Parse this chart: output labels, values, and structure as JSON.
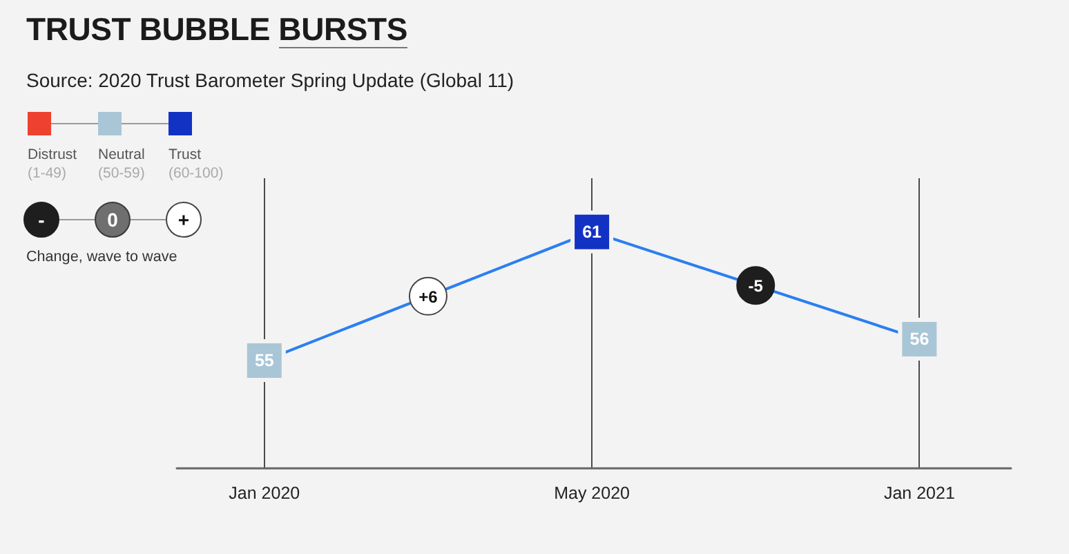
{
  "chart_data": {
    "type": "line",
    "title": "TRUST BUBBLE BURSTS",
    "subtitle": "Source: 2020 Trust Barometer Spring Update (Global 11)",
    "categories": [
      "Jan 2020",
      "May 2020",
      "Jan 2021"
    ],
    "series": [
      {
        "values": [
          55,
          61,
          56
        ],
        "color": "#2b7ff0",
        "colors": [
          "#a9c6d6",
          "#1232c4",
          "#a9c6d6"
        ]
      },
      {
        "name": "Distrust\n(1-49)",
        "color": "#ee4130",
        "values": [
          null,
          null,
          null
        ]
      },
      {
        "name": "Neutral\n(50-59)",
        "color": "#a9c6d6",
        "values": [
          null,
          null,
          null
        ]
      },
      {
        "name": "Trust\n(60-100)",
        "color": "#1232c4",
        "values": [
          null,
          null,
          null
        ]
      }
    ],
    "ylim": [
      50,
      63.5
    ],
    "data_labels": true,
    "marker": "square",
    "line_style": "solid",
    "grid": "x",
    "legend": "top left",
    "tick_labels": "x",
    "annotations": [
      {
        "text": "+6",
        "y": 58
      },
      {
        "text": "-5",
        "y": 58.5
      },
      "-",
      "0",
      "+",
      "Change, wave to wave"
    ]
  }
}
